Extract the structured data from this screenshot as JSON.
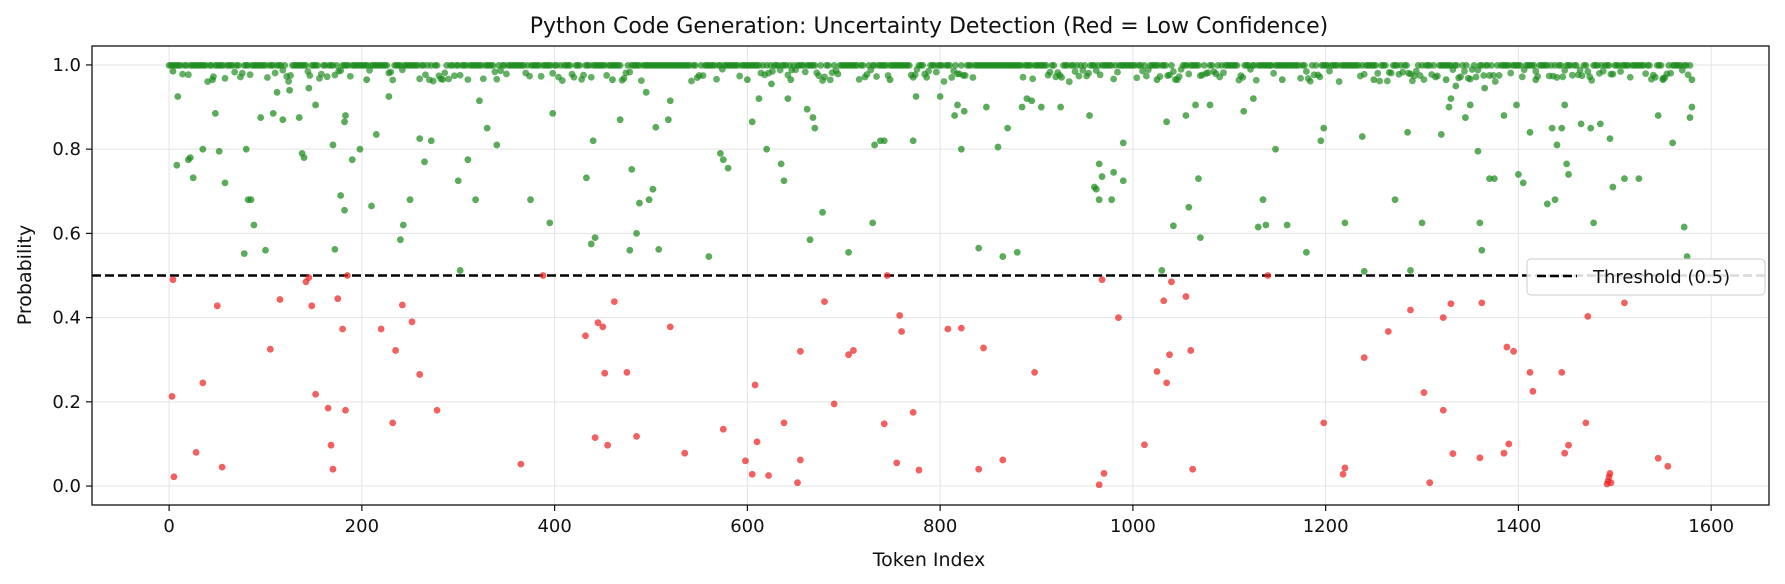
{
  "chart_data": {
    "type": "scatter",
    "title": "Python Code Generation: Uncertainty Detection (Red = Low Confidence)",
    "xlabel": "Token Index",
    "ylabel": "Probability",
    "xlim": [
      -80,
      1660
    ],
    "ylim": [
      -0.045,
      1.045
    ],
    "xticks": [
      0,
      200,
      400,
      600,
      800,
      1000,
      1200,
      1400,
      1600
    ],
    "yticks": [
      0.0,
      0.2,
      0.4,
      0.6,
      0.8,
      1.0
    ],
    "xtick_labels": [
      "0",
      "200",
      "400",
      "600",
      "800",
      "1000",
      "1200",
      "1400",
      "1600"
    ],
    "ytick_labels": [
      "0.0",
      "0.2",
      "0.4",
      "0.6",
      "0.8",
      "1.0"
    ],
    "grid": true,
    "legend_position": "right",
    "threshold": {
      "value": 0.5,
      "label": "Threshold (0.5)",
      "color": "#000000",
      "style": "dashed"
    },
    "colors": {
      "high": "#1a8a1a",
      "low": "#ee2222"
    },
    "token_count": 1580,
    "series": [
      {
        "color": "#1a8a1a",
        "points": [
          [
            4,
            0.985
          ],
          [
            8,
            0.762
          ],
          [
            9,
            0.925
          ],
          [
            20,
            0.775
          ],
          [
            22,
            0.78
          ],
          [
            25,
            0.732
          ],
          [
            35,
            0.8
          ],
          [
            45,
            0.965
          ],
          [
            48,
            0.885
          ],
          [
            52,
            0.795
          ],
          [
            58,
            0.72
          ],
          [
            78,
            0.552
          ],
          [
            80,
            0.8
          ],
          [
            82,
            0.68
          ],
          [
            85,
            0.68
          ],
          [
            88,
            0.62
          ],
          [
            95,
            0.875
          ],
          [
            100,
            0.56
          ],
          [
            108,
            0.885
          ],
          [
            112,
            0.935
          ],
          [
            118,
            0.87
          ],
          [
            125,
            0.94
          ],
          [
            135,
            0.875
          ],
          [
            138,
            0.79
          ],
          [
            140,
            0.78
          ],
          [
            145,
            0.945
          ],
          [
            152,
            0.905
          ],
          [
            170,
            0.81
          ],
          [
            172,
            0.562
          ],
          [
            178,
            0.69
          ],
          [
            182,
            0.865
          ],
          [
            183,
            0.88
          ],
          [
            182,
            0.655
          ],
          [
            190,
            0.775
          ],
          [
            198,
            0.8
          ],
          [
            205,
            0.965
          ],
          [
            210,
            0.665
          ],
          [
            215,
            0.835
          ],
          [
            228,
            0.925
          ],
          [
            240,
            0.585
          ],
          [
            243,
            0.62
          ],
          [
            250,
            0.68
          ],
          [
            260,
            0.825
          ],
          [
            265,
            0.77
          ],
          [
            272,
            0.82
          ],
          [
            300,
            0.725
          ],
          [
            302,
            0.512
          ],
          [
            310,
            0.775
          ],
          [
            318,
            0.68
          ],
          [
            322,
            0.915
          ],
          [
            330,
            0.85
          ],
          [
            340,
            0.81
          ],
          [
            375,
            0.68
          ],
          [
            395,
            0.625
          ],
          [
            398,
            0.885
          ],
          [
            433,
            0.732
          ],
          [
            438,
            0.575
          ],
          [
            440,
            0.82
          ],
          [
            442,
            0.59
          ],
          [
            460,
            0.965
          ],
          [
            468,
            0.87
          ],
          [
            478,
            0.56
          ],
          [
            480,
            0.752
          ],
          [
            485,
            0.6
          ],
          [
            488,
            0.672
          ],
          [
            495,
            0.935
          ],
          [
            498,
            0.68
          ],
          [
            502,
            0.705
          ],
          [
            505,
            0.852
          ],
          [
            508,
            0.562
          ],
          [
            518,
            0.87
          ],
          [
            520,
            0.915
          ],
          [
            560,
            0.545
          ],
          [
            572,
            0.79
          ],
          [
            575,
            0.775
          ],
          [
            580,
            0.755
          ],
          [
            600,
            0.965
          ],
          [
            605,
            0.865
          ],
          [
            612,
            0.92
          ],
          [
            620,
            0.8
          ],
          [
            625,
            0.955
          ],
          [
            635,
            0.765
          ],
          [
            638,
            0.725
          ],
          [
            642,
            0.92
          ],
          [
            645,
            0.965
          ],
          [
            662,
            0.895
          ],
          [
            665,
            0.585
          ],
          [
            668,
            0.875
          ],
          [
            670,
            0.85
          ],
          [
            678,
            0.65
          ],
          [
            705,
            0.555
          ],
          [
            730,
            0.625
          ],
          [
            732,
            0.81
          ],
          [
            738,
            0.82
          ],
          [
            742,
            0.82
          ],
          [
            748,
            0.965
          ],
          [
            772,
            0.82
          ],
          [
            775,
            0.925
          ],
          [
            800,
            0.925
          ],
          [
            815,
            0.88
          ],
          [
            818,
            0.905
          ],
          [
            822,
            0.8
          ],
          [
            825,
            0.89
          ],
          [
            840,
            0.565
          ],
          [
            848,
            0.9
          ],
          [
            860,
            0.805
          ],
          [
            865,
            0.545
          ],
          [
            870,
            0.85
          ],
          [
            880,
            0.555
          ],
          [
            885,
            0.9
          ],
          [
            890,
            0.92
          ],
          [
            895,
            0.915
          ],
          [
            905,
            0.9
          ],
          [
            925,
            0.9
          ],
          [
            955,
            0.88
          ],
          [
            960,
            0.71
          ],
          [
            962,
            0.705
          ],
          [
            965,
            0.765
          ],
          [
            965,
            0.68
          ],
          [
            968,
            0.735
          ],
          [
            978,
            0.68
          ],
          [
            980,
            0.745
          ],
          [
            990,
            0.725
          ],
          [
            990,
            0.815
          ],
          [
            1025,
            0.965
          ],
          [
            1030,
            0.512
          ],
          [
            1035,
            0.865
          ],
          [
            1042,
            0.618
          ],
          [
            1055,
            0.88
          ],
          [
            1058,
            0.662
          ],
          [
            1065,
            0.905
          ],
          [
            1068,
            0.73
          ],
          [
            1070,
            0.59
          ],
          [
            1080,
            0.905
          ],
          [
            1115,
            0.89
          ],
          [
            1125,
            0.92
          ],
          [
            1130,
            0.615
          ],
          [
            1135,
            0.68
          ],
          [
            1138,
            0.62
          ],
          [
            1148,
            0.8
          ],
          [
            1155,
            0.965
          ],
          [
            1160,
            0.62
          ],
          [
            1180,
            0.555
          ],
          [
            1195,
            0.82
          ],
          [
            1198,
            0.85
          ],
          [
            1220,
            0.625
          ],
          [
            1238,
            0.83
          ],
          [
            1240,
            0.51
          ],
          [
            1250,
            0.965
          ],
          [
            1272,
            0.68
          ],
          [
            1285,
            0.84
          ],
          [
            1288,
            0.512
          ],
          [
            1300,
            0.625
          ],
          [
            1320,
            0.835
          ],
          [
            1325,
            0.965
          ],
          [
            1328,
            0.9
          ],
          [
            1330,
            0.92
          ],
          [
            1335,
            0.95
          ],
          [
            1345,
            0.875
          ],
          [
            1350,
            0.905
          ],
          [
            1358,
            0.795
          ],
          [
            1360,
            0.625
          ],
          [
            1362,
            0.56
          ],
          [
            1365,
            0.945
          ],
          [
            1370,
            0.73
          ],
          [
            1375,
            0.73
          ],
          [
            1385,
            0.88
          ],
          [
            1398,
            0.905
          ],
          [
            1400,
            0.74
          ],
          [
            1405,
            0.72
          ],
          [
            1412,
            0.84
          ],
          [
            1418,
            0.965
          ],
          [
            1430,
            0.67
          ],
          [
            1435,
            0.85
          ],
          [
            1438,
            0.68
          ],
          [
            1440,
            0.81
          ],
          [
            1445,
            0.85
          ],
          [
            1448,
            0.905
          ],
          [
            1450,
            0.765
          ],
          [
            1452,
            0.74
          ],
          [
            1465,
            0.86
          ],
          [
            1475,
            0.85
          ],
          [
            1478,
            0.625
          ],
          [
            1485,
            0.86
          ],
          [
            1495,
            0.825
          ],
          [
            1498,
            0.71
          ],
          [
            1510,
            0.73
          ],
          [
            1525,
            0.73
          ],
          [
            1545,
            0.88
          ],
          [
            1550,
            0.965
          ],
          [
            1560,
            0.815
          ],
          [
            1572,
            0.615
          ],
          [
            1575,
            0.545
          ],
          [
            1578,
            0.875
          ],
          [
            1580,
            0.9
          ],
          [
            1580,
            0.965
          ]
        ]
      },
      {
        "color": "#ee2222",
        "points": [
          [
            4,
            0.49
          ],
          [
            3,
            0.213
          ],
          [
            5,
            0.022
          ],
          [
            28,
            0.08
          ],
          [
            35,
            0.245
          ],
          [
            50,
            0.428
          ],
          [
            55,
            0.045
          ],
          [
            105,
            0.325
          ],
          [
            115,
            0.443
          ],
          [
            142,
            0.485
          ],
          [
            145,
            0.495
          ],
          [
            148,
            0.428
          ],
          [
            152,
            0.218
          ],
          [
            165,
            0.185
          ],
          [
            168,
            0.097
          ],
          [
            170,
            0.04
          ],
          [
            175,
            0.445
          ],
          [
            180,
            0.373
          ],
          [
            183,
            0.18
          ],
          [
            185,
            0.5
          ],
          [
            220,
            0.373
          ],
          [
            232,
            0.15
          ],
          [
            235,
            0.322
          ],
          [
            242,
            0.43
          ],
          [
            252,
            0.39
          ],
          [
            260,
            0.265
          ],
          [
            278,
            0.18
          ],
          [
            365,
            0.052
          ],
          [
            388,
            0.5
          ],
          [
            432,
            0.357
          ],
          [
            442,
            0.115
          ],
          [
            445,
            0.388
          ],
          [
            450,
            0.378
          ],
          [
            452,
            0.268
          ],
          [
            455,
            0.097
          ],
          [
            462,
            0.438
          ],
          [
            475,
            0.27
          ],
          [
            485,
            0.118
          ],
          [
            520,
            0.378
          ],
          [
            535,
            0.078
          ],
          [
            575,
            0.135
          ],
          [
            598,
            0.06
          ],
          [
            605,
            0.028
          ],
          [
            608,
            0.24
          ],
          [
            610,
            0.105
          ],
          [
            622,
            0.025
          ],
          [
            638,
            0.15
          ],
          [
            652,
            0.008
          ],
          [
            655,
            0.062
          ],
          [
            655,
            0.32
          ],
          [
            680,
            0.438
          ],
          [
            690,
            0.195
          ],
          [
            705,
            0.312
          ],
          [
            710,
            0.322
          ],
          [
            742,
            0.148
          ],
          [
            745,
            0.5
          ],
          [
            755,
            0.055
          ],
          [
            758,
            0.405
          ],
          [
            760,
            0.367
          ],
          [
            772,
            0.175
          ],
          [
            778,
            0.038
          ],
          [
            808,
            0.373
          ],
          [
            822,
            0.375
          ],
          [
            840,
            0.04
          ],
          [
            845,
            0.328
          ],
          [
            865,
            0.062
          ],
          [
            898,
            0.27
          ],
          [
            965,
            0.003
          ],
          [
            968,
            0.49
          ],
          [
            970,
            0.03
          ],
          [
            985,
            0.4
          ],
          [
            1012,
            0.098
          ],
          [
            1025,
            0.272
          ],
          [
            1032,
            0.44
          ],
          [
            1035,
            0.245
          ],
          [
            1038,
            0.312
          ],
          [
            1040,
            0.485
          ],
          [
            1055,
            0.45
          ],
          [
            1060,
            0.322
          ],
          [
            1062,
            0.04
          ],
          [
            1140,
            0.5
          ],
          [
            1198,
            0.15
          ],
          [
            1218,
            0.028
          ],
          [
            1220,
            0.043
          ],
          [
            1240,
            0.305
          ],
          [
            1265,
            0.367
          ],
          [
            1288,
            0.418
          ],
          [
            1302,
            0.222
          ],
          [
            1308,
            0.008
          ],
          [
            1322,
            0.4
          ],
          [
            1322,
            0.18
          ],
          [
            1330,
            0.433
          ],
          [
            1332,
            0.077
          ],
          [
            1360,
            0.067
          ],
          [
            1362,
            0.435
          ],
          [
            1385,
            0.078
          ],
          [
            1388,
            0.33
          ],
          [
            1390,
            0.1
          ],
          [
            1395,
            0.32
          ],
          [
            1412,
            0.27
          ],
          [
            1415,
            0.225
          ],
          [
            1445,
            0.27
          ],
          [
            1448,
            0.078
          ],
          [
            1452,
            0.097
          ],
          [
            1470,
            0.15
          ],
          [
            1472,
            0.403
          ],
          [
            1492,
            0.005
          ],
          [
            1493,
            0.012
          ],
          [
            1494,
            0.022
          ],
          [
            1495,
            0.03
          ],
          [
            1496,
            0.008
          ],
          [
            1510,
            0.435
          ],
          [
            1545,
            0.066
          ],
          [
            1555,
            0.047
          ]
        ]
      }
    ]
  }
}
